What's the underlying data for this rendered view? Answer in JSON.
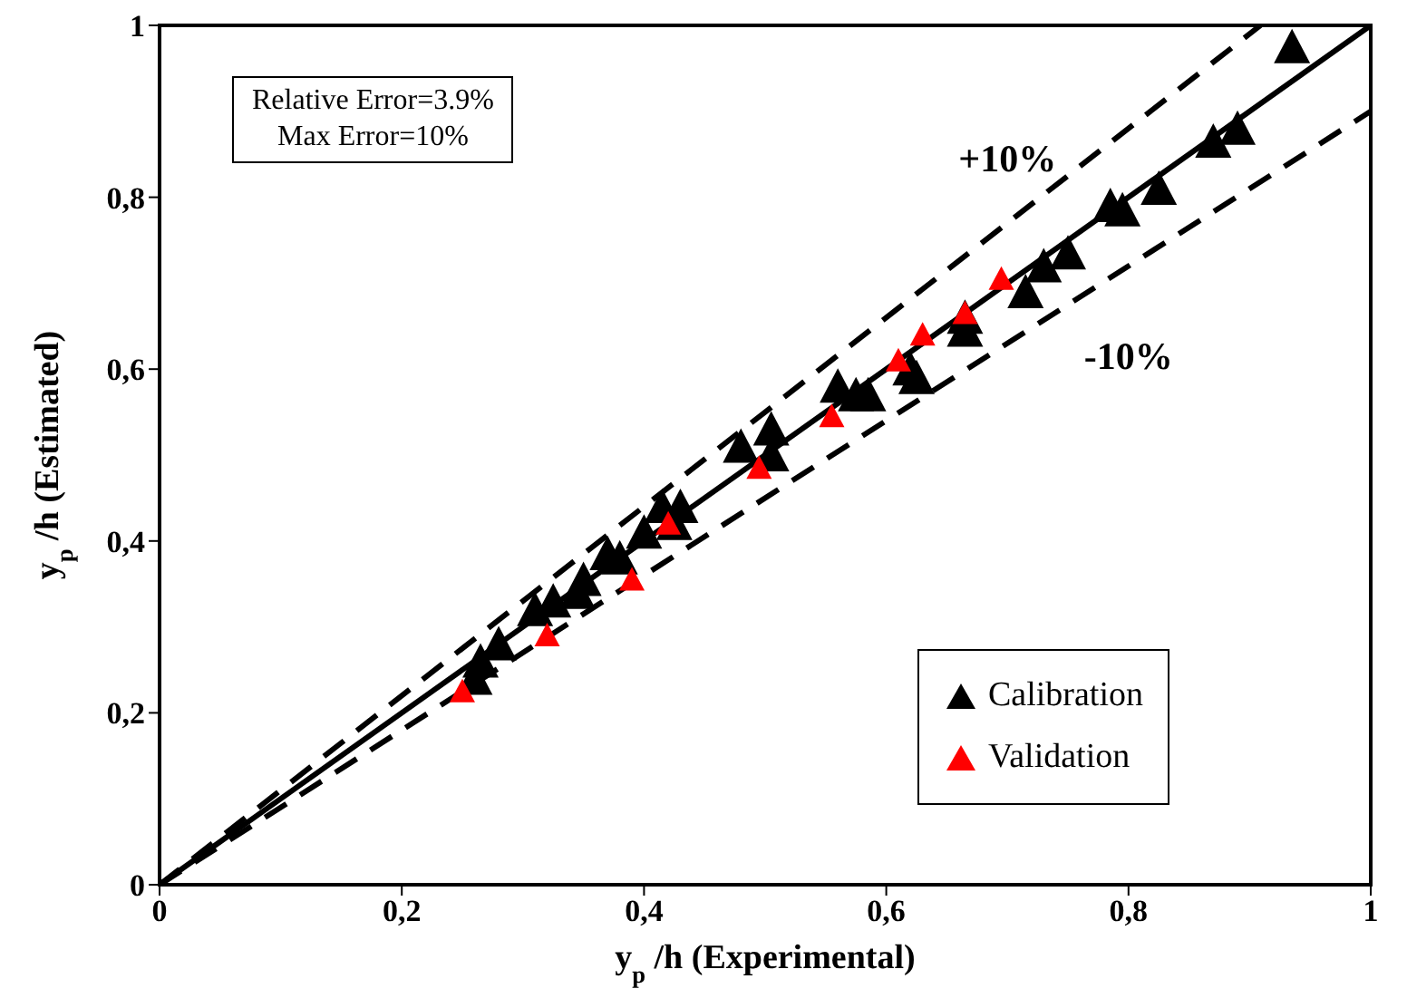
{
  "chart_data": {
    "type": "scatter",
    "xlabel": "y$_{p}$ /h (Experimental)",
    "ylabel": "y$_{p}$ /h (Estimated)",
    "xlim": [
      0,
      1
    ],
    "ylim": [
      0,
      1
    ],
    "xticks": [
      0,
      {
        "value": 0.2,
        "label": "0,2"
      },
      {
        "value": 0.4,
        "label": "0,4"
      },
      {
        "value": 0.6,
        "label": "0,6"
      },
      {
        "value": 0.8,
        "label": "0,8"
      },
      1
    ],
    "yticks": [
      0,
      {
        "value": 0.2,
        "label": "0,2"
      },
      {
        "value": 0.4,
        "label": "0,4"
      },
      {
        "value": 0.6,
        "label": "0,6"
      },
      {
        "value": 0.8,
        "label": "0,8"
      },
      1
    ],
    "legend": "bottom right",
    "marker": "triangle",
    "annotations": [
      "Relative Error=3.9%",
      "Max Error=10%",
      "+10%",
      "-10%"
    ],
    "series": [
      {
        "name": "Calibration",
        "color": "#000000",
        "x": [
          0.26,
          0.265,
          0.28,
          0.31,
          0.325,
          0.345,
          0.35,
          0.37,
          0.38,
          0.4,
          0.415,
          0.425,
          0.43,
          0.48,
          0.505,
          0.505,
          0.56,
          0.575,
          0.585,
          0.62,
          0.625,
          0.665,
          0.665,
          0.715,
          0.73,
          0.75,
          0.785,
          0.795,
          0.825,
          0.87,
          0.89,
          0.935
        ],
        "values": [
          0.24,
          0.26,
          0.28,
          0.32,
          0.33,
          0.34,
          0.355,
          0.385,
          0.38,
          0.41,
          0.44,
          0.42,
          0.44,
          0.51,
          0.5,
          0.53,
          0.58,
          0.57,
          0.57,
          0.6,
          0.59,
          0.645,
          0.66,
          0.69,
          0.72,
          0.735,
          0.79,
          0.785,
          0.81,
          0.865,
          0.88,
          0.975
        ]
      },
      {
        "name": "Validation",
        "color": "#ff0000",
        "x": [
          0.25,
          0.32,
          0.39,
          0.42,
          0.495,
          0.555,
          0.61,
          0.63,
          0.665,
          0.695
        ],
        "values": [
          0.225,
          0.29,
          0.355,
          0.42,
          0.485,
          0.545,
          0.61,
          0.64,
          0.665,
          0.705
        ]
      },
      {
        "type": "line",
        "color": "#000000",
        "line_style": "solid",
        "marker": "none",
        "x": [
          0,
          1
        ],
        "values": [
          0,
          1
        ]
      },
      {
        "type": "line",
        "color": "#000000",
        "line_style": "dashed",
        "marker": "none",
        "x": [
          0,
          0.909
        ],
        "values": [
          0,
          1
        ]
      },
      {
        "type": "line",
        "color": "#000000",
        "line_style": "dashed",
        "marker": "none",
        "x": [
          0,
          1
        ],
        "values": [
          0,
          0.9
        ]
      }
    ]
  }
}
